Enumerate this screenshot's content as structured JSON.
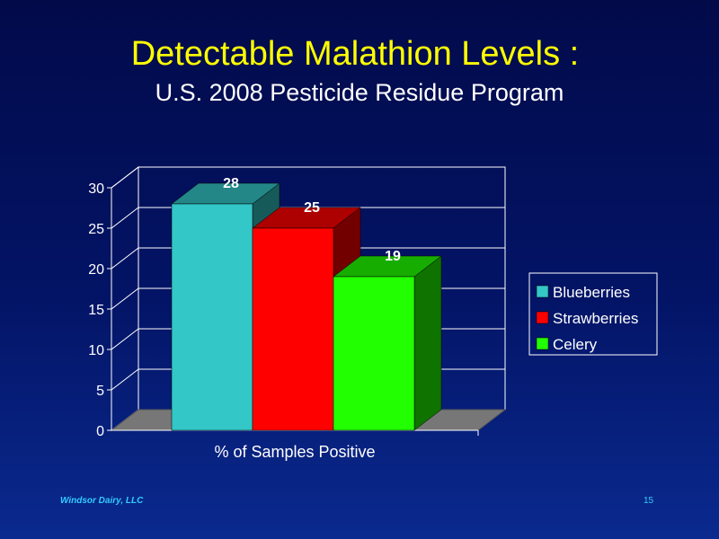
{
  "slide": {
    "title": "Detectable Malathion Levels :",
    "subtitle": "U.S. 2008 Pesticide Residue Program",
    "footer_left": "Windsor Dairy, LLC",
    "page_number": "15"
  },
  "colors": {
    "background": "#03145f",
    "title": "#ffff00",
    "footer": "#33ccff"
  },
  "chart_data": {
    "type": "bar",
    "style": "3d",
    "categories": [
      "% of Samples Positive"
    ],
    "series": [
      {
        "name": "Blueberries",
        "values": [
          28
        ],
        "color": "#33c7c7"
      },
      {
        "name": "Strawberries",
        "values": [
          25
        ],
        "color": "#ff0000"
      },
      {
        "name": "Celery",
        "values": [
          19
        ],
        "color": "#22ff00"
      }
    ],
    "ylim": [
      0,
      30
    ],
    "yticks": [
      0,
      5,
      10,
      15,
      20,
      25,
      30
    ],
    "xlabel": "% of Samples Positive",
    "ylabel": "",
    "grid": true,
    "data_labels": true,
    "legend_position": "right"
  }
}
